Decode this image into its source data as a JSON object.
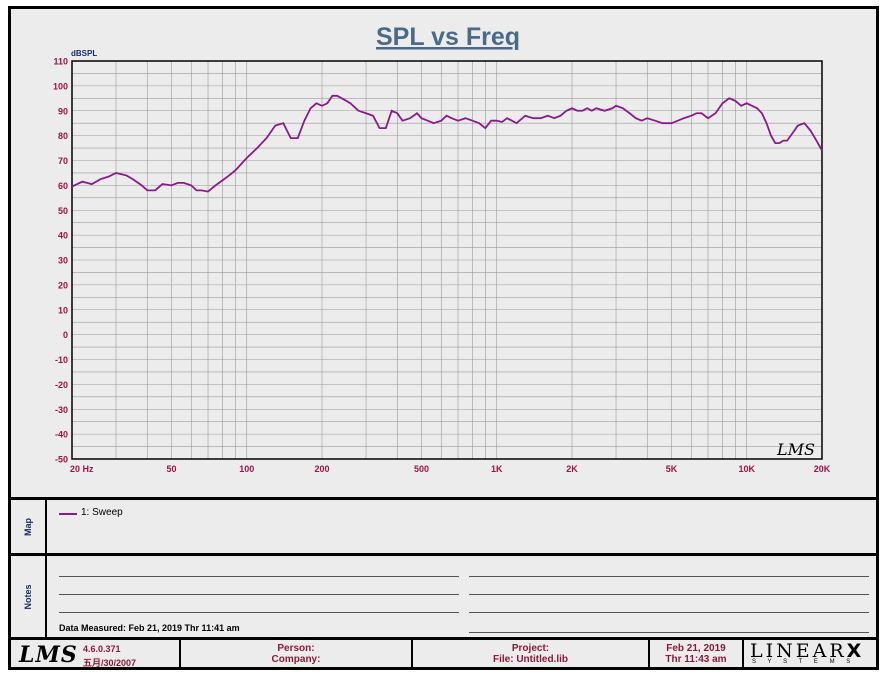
{
  "chart_data": {
    "type": "line",
    "title": "SPL vs Freq",
    "ylabel": "dBSPL",
    "xscale": "log",
    "xlim": [
      20,
      20000
    ],
    "ylim": [
      -50,
      110
    ],
    "grid": true,
    "y_ticks": [
      110,
      100,
      90,
      80,
      70,
      60,
      50,
      40,
      30,
      20,
      10,
      0,
      -10,
      -20,
      -30,
      -40,
      -50
    ],
    "x_ticks": [
      {
        "value": 20,
        "label": "20  Hz"
      },
      {
        "value": 50,
        "label": "50"
      },
      {
        "value": 100,
        "label": "100"
      },
      {
        "value": 200,
        "label": "200"
      },
      {
        "value": 500,
        "label": "500"
      },
      {
        "value": 1000,
        "label": "1K"
      },
      {
        "value": 2000,
        "label": "2K"
      },
      {
        "value": 5000,
        "label": "5K"
      },
      {
        "value": 10000,
        "label": "10K"
      },
      {
        "value": 20000,
        "label": "20K"
      }
    ],
    "series": [
      {
        "name": "1: Sweep",
        "color": "#8b1a8b",
        "x": [
          20,
          22,
          24,
          26,
          28,
          30,
          33,
          35,
          38,
          40,
          43,
          46,
          50,
          53,
          56,
          60,
          63,
          66,
          70,
          75,
          80,
          85,
          90,
          100,
          110,
          120,
          130,
          140,
          150,
          160,
          170,
          180,
          190,
          200,
          210,
          220,
          230,
          240,
          250,
          260,
          280,
          300,
          320,
          340,
          360,
          380,
          400,
          420,
          450,
          480,
          500,
          530,
          560,
          600,
          630,
          660,
          700,
          750,
          800,
          850,
          900,
          950,
          1000,
          1050,
          1100,
          1150,
          1200,
          1300,
          1400,
          1500,
          1600,
          1700,
          1800,
          1900,
          2000,
          2100,
          2200,
          2300,
          2400,
          2500,
          2700,
          2900,
          3000,
          3200,
          3400,
          3600,
          3800,
          4000,
          4300,
          4600,
          5000,
          5300,
          5600,
          6000,
          6300,
          6600,
          7000,
          7500,
          8000,
          8500,
          9000,
          9500,
          10000,
          10500,
          11000,
          11500,
          12000,
          12500,
          13000,
          13500,
          14000,
          14500,
          15000,
          15500,
          16000,
          17000,
          18000,
          19000,
          20000
        ],
        "y": [
          59.5,
          61.5,
          60.5,
          62.5,
          63.5,
          65,
          64,
          62.5,
          60,
          58,
          58,
          60.5,
          60,
          61,
          61,
          60,
          58,
          58,
          57.5,
          60,
          62,
          64,
          66,
          71,
          75,
          79,
          84,
          85,
          79,
          79,
          86,
          91,
          93,
          92,
          93,
          96,
          96,
          95,
          94,
          93,
          90,
          89,
          88,
          83,
          83,
          90,
          89,
          86,
          87,
          89,
          87,
          86,
          85,
          86,
          88,
          87,
          86,
          87,
          86,
          85,
          83,
          86,
          86,
          85.5,
          87,
          86,
          85,
          88,
          87,
          87,
          88,
          87,
          88,
          90,
          91,
          90,
          90,
          91,
          90,
          91,
          90,
          91,
          92,
          91,
          89,
          87,
          86,
          87,
          86,
          85,
          85,
          86,
          87,
          88,
          89,
          89,
          87,
          89,
          93,
          95,
          94,
          92,
          93,
          92,
          91,
          89,
          85,
          80,
          77,
          77,
          78,
          78,
          80,
          82,
          84,
          85,
          82,
          78,
          74
        ]
      }
    ]
  },
  "legend": {
    "label": "1: Sweep"
  },
  "notes": {
    "label": "Notes",
    "data_measured": "Data Measured: Feb 21, 2019  Thr 11:41 am"
  },
  "map": {
    "label": "Map"
  },
  "footer": {
    "lms_logo": "LMS",
    "version": "4.6.0.371",
    "version_date": "五月/30/2007",
    "person": "Person:",
    "company": "Company:",
    "project": "Project:",
    "file": "File: Untitled.lib",
    "date": "Feb 21, 2019",
    "time": "Thr 11:43 am",
    "brand": "LINEAR",
    "brand_x": "X",
    "brand_sub": "S Y S T E M S"
  },
  "watermark": "LMS",
  "colors": {
    "accent": "#8b1a8b",
    "axis_label": "#a0124a",
    "title": "#4a6a8a",
    "panel": "#ececec"
  }
}
